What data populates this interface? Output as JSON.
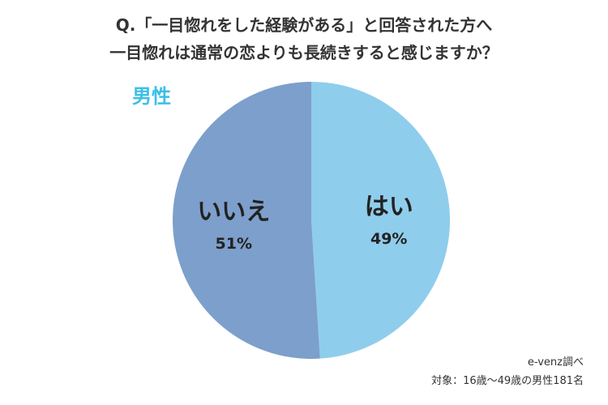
{
  "question": {
    "line1": "Q.「一目惚れをした経験がある」と回答された方へ",
    "line2": "一目惚れは通常の恋よりも長続きすると感じますか？"
  },
  "segment_title": "男性",
  "footer": {
    "source": "e-venz調べ",
    "target": "対象：16歳〜49歳の男性181名"
  },
  "colors": {
    "accent": "#3bbfe8",
    "yes": "#8fcdec",
    "no": "#7d9fcb",
    "text": "#222222"
  },
  "chart_data": {
    "type": "pie",
    "title": "Q.「一目惚れをした経験がある」と回答された方へ 一目惚れは通常の恋よりも長続きすると感じますか？",
    "subtitle": "男性",
    "slices": [
      {
        "label": "はい",
        "value": 49,
        "display": "49%",
        "color": "#8fcdec"
      },
      {
        "label": "いいえ",
        "value": 51,
        "display": "51%",
        "color": "#7d9fcb"
      }
    ],
    "start": "top",
    "direction": "clockwise"
  }
}
